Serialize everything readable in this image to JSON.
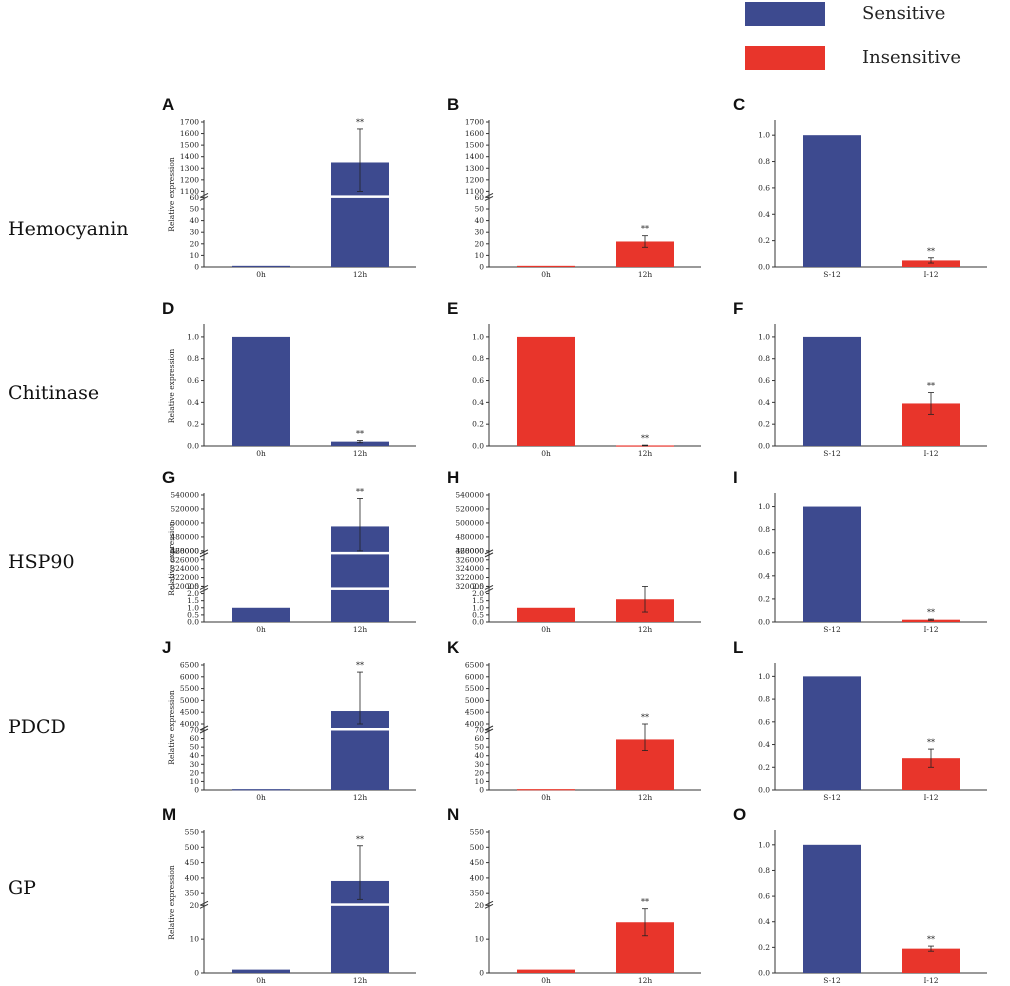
{
  "colors": {
    "sensitive": "#3d4a8f",
    "insensitive": "#e8352b",
    "axis": "#333333",
    "break": "#ffffff"
  },
  "legend": [
    {
      "label": "Sensitive",
      "color": "#3d4a8f"
    },
    {
      "label": "Insensitive",
      "color": "#e8352b"
    }
  ],
  "row_labels": [
    "Hemocyanin",
    "Chitinase",
    "HSP90",
    "PDCD",
    "GP"
  ],
  "ylabel": "Relative expression",
  "chart_data": [
    {
      "panel": "A",
      "type": "bar",
      "categories": [
        "0h",
        "12h"
      ],
      "values": [
        1,
        1350
      ],
      "errors": [
        0,
        290
      ],
      "stars": [
        "",
        "**"
      ],
      "colors": [
        "sensitive",
        "sensitive"
      ],
      "axis": {
        "low": {
          "max": 60,
          "ticks": [
            0,
            10,
            20,
            30,
            40,
            50,
            60
          ]
        },
        "high": {
          "min": 1100,
          "max": 1700,
          "ticks": [
            1100,
            1200,
            1300,
            1400,
            1500,
            1600,
            1700
          ]
        }
      },
      "ylabel": "Relative expression"
    },
    {
      "panel": "B",
      "type": "bar",
      "categories": [
        "0h",
        "12h"
      ],
      "values": [
        1,
        22
      ],
      "errors": [
        0,
        5
      ],
      "stars": [
        "",
        "**"
      ],
      "colors": [
        "insensitive",
        "insensitive"
      ],
      "axis": {
        "low": {
          "max": 60,
          "ticks": [
            0,
            10,
            20,
            30,
            40,
            50,
            60
          ]
        },
        "high": {
          "min": 1100,
          "max": 1700,
          "ticks": [
            1100,
            1200,
            1300,
            1400,
            1500,
            1600,
            1700
          ]
        }
      }
    },
    {
      "panel": "C",
      "type": "bar",
      "categories": [
        "S-12",
        "I-12"
      ],
      "values": [
        1.0,
        0.05
      ],
      "errors": [
        0,
        0.02
      ],
      "stars": [
        "",
        "**"
      ],
      "colors": [
        "sensitive",
        "insensitive"
      ],
      "axis": {
        "max": 1.1,
        "ticks": [
          0.0,
          0.2,
          0.4,
          0.6,
          0.8,
          1.0
        ],
        "labels": [
          "0.0",
          "0.2",
          "0.4",
          "0.6",
          "0.8",
          "1.0"
        ]
      }
    },
    {
      "panel": "D",
      "type": "bar",
      "categories": [
        "0h",
        "12h"
      ],
      "values": [
        1.0,
        0.04
      ],
      "errors": [
        0,
        0.01
      ],
      "stars": [
        "",
        "**"
      ],
      "colors": [
        "sensitive",
        "sensitive"
      ],
      "axis": {
        "max": 1.1,
        "ticks": [
          0.0,
          0.2,
          0.4,
          0.6,
          0.8,
          1.0
        ],
        "labels": [
          "0.0",
          "0.2",
          "0.4",
          "0.6",
          "0.8",
          "1.0"
        ]
      },
      "ylabel": "Relative expression"
    },
    {
      "panel": "E",
      "type": "bar",
      "categories": [
        "0h",
        "12h"
      ],
      "values": [
        1.0,
        0.005
      ],
      "errors": [
        0,
        0.003
      ],
      "stars": [
        "",
        "**"
      ],
      "colors": [
        "insensitive",
        "insensitive"
      ],
      "axis": {
        "max": 1.1,
        "ticks": [
          0.0,
          0.2,
          0.4,
          0.6,
          0.8,
          1.0
        ],
        "labels": [
          "0.0",
          "0.2",
          "0.4",
          "0.6",
          "0.8",
          "1.0"
        ]
      }
    },
    {
      "panel": "F",
      "type": "bar",
      "categories": [
        "S-12",
        "I-12"
      ],
      "values": [
        1.0,
        0.39
      ],
      "errors": [
        0,
        0.1
      ],
      "stars": [
        "",
        "**"
      ],
      "colors": [
        "sensitive",
        "insensitive"
      ],
      "axis": {
        "max": 1.1,
        "ticks": [
          0.0,
          0.2,
          0.4,
          0.6,
          0.8,
          1.0
        ],
        "labels": [
          "0.0",
          "0.2",
          "0.4",
          "0.6",
          "0.8",
          "1.0"
        ]
      }
    },
    {
      "panel": "G",
      "type": "bar",
      "categories": [
        "0h",
        "12h"
      ],
      "values": [
        1,
        495000
      ],
      "errors": [
        0,
        40000
      ],
      "stars": [
        "",
        "**"
      ],
      "colors": [
        "sensitive",
        "sensitive"
      ],
      "axis": {
        "segments": [
          {
            "min": 0,
            "max": 2.5,
            "ticks": [
              0,
              0.5,
              1,
              1.5,
              2,
              2.5
            ],
            "labels": [
              "0.0",
              "0.5",
              "1.0",
              "1.5",
              "2.0",
              "2.5"
            ]
          },
          {
            "min": 320000,
            "max": 328000,
            "ticks": [
              320000,
              322000,
              324000,
              326000,
              328000
            ]
          },
          {
            "min": 460000,
            "max": 540000,
            "ticks": [
              460000,
              480000,
              500000,
              520000,
              540000
            ]
          }
        ]
      },
      "ylabel": "Relative expression"
    },
    {
      "panel": "H",
      "type": "bar",
      "categories": [
        "0h",
        "12h"
      ],
      "values": [
        1,
        1.6
      ],
      "errors": [
        0,
        0.9
      ],
      "stars": [
        "",
        ""
      ],
      "colors": [
        "insensitive",
        "insensitive"
      ],
      "axis": {
        "segments": [
          {
            "min": 0,
            "max": 2.5,
            "ticks": [
              0,
              0.5,
              1,
              1.5,
              2,
              2.5
            ],
            "labels": [
              "0.0",
              "0.5",
              "1.0",
              "1.5",
              "2.0",
              "2.5"
            ]
          },
          {
            "min": 320000,
            "max": 328000,
            "ticks": [
              320000,
              322000,
              324000,
              326000,
              328000
            ]
          },
          {
            "min": 460000,
            "max": 540000,
            "ticks": [
              460000,
              480000,
              500000,
              520000,
              540000
            ]
          }
        ]
      }
    },
    {
      "panel": "I",
      "type": "bar",
      "categories": [
        "S-12",
        "I-12"
      ],
      "values": [
        1.0,
        0.02
      ],
      "errors": [
        0,
        0.005
      ],
      "stars": [
        "",
        "**"
      ],
      "colors": [
        "sensitive",
        "insensitive"
      ],
      "axis": {
        "max": 1.1,
        "ticks": [
          0.0,
          0.2,
          0.4,
          0.6,
          0.8,
          1.0
        ],
        "labels": [
          "0.0",
          "0.2",
          "0.4",
          "0.6",
          "0.8",
          "1.0"
        ]
      }
    },
    {
      "panel": "J",
      "type": "bar",
      "categories": [
        "0h",
        "12h"
      ],
      "values": [
        1,
        4550
      ],
      "errors": [
        0,
        1650
      ],
      "stars": [
        "",
        "**"
      ],
      "colors": [
        "sensitive",
        "sensitive"
      ],
      "axis": {
        "low": {
          "max": 70,
          "ticks": [
            0,
            10,
            20,
            30,
            40,
            50,
            60,
            70
          ]
        },
        "high": {
          "min": 4000,
          "max": 6500,
          "ticks": [
            4000,
            4500,
            5000,
            5500,
            6000,
            6500
          ]
        }
      },
      "ylabel": "Relative expression"
    },
    {
      "panel": "K",
      "type": "bar",
      "categories": [
        "0h",
        "12h"
      ],
      "values": [
        1,
        59
      ],
      "errors": [
        0,
        13
      ],
      "stars": [
        "",
        "**"
      ],
      "colors": [
        "insensitive",
        "insensitive"
      ],
      "axis": {
        "low": {
          "max": 70,
          "ticks": [
            0,
            10,
            20,
            30,
            40,
            50,
            60,
            70
          ]
        },
        "high": {
          "min": 4000,
          "max": 6500,
          "ticks": [
            4000,
            4500,
            5000,
            5500,
            6000,
            6500
          ]
        }
      }
    },
    {
      "panel": "L",
      "type": "bar",
      "categories": [
        "S-12",
        "I-12"
      ],
      "values": [
        1.0,
        0.28
      ],
      "errors": [
        0,
        0.08
      ],
      "stars": [
        "",
        "**"
      ],
      "colors": [
        "sensitive",
        "insensitive"
      ],
      "axis": {
        "max": 1.1,
        "ticks": [
          0.0,
          0.2,
          0.4,
          0.6,
          0.8,
          1.0
        ],
        "labels": [
          "0.0",
          "0.2",
          "0.4",
          "0.6",
          "0.8",
          "1.0"
        ]
      }
    },
    {
      "panel": "M",
      "type": "bar",
      "categories": [
        "0h",
        "12h"
      ],
      "values": [
        1,
        390
      ],
      "errors": [
        0,
        115
      ],
      "stars": [
        "",
        "**"
      ],
      "colors": [
        "sensitive",
        "sensitive"
      ],
      "axis": {
        "low": {
          "max": 20,
          "ticks": [
            0,
            10,
            20
          ]
        },
        "high": {
          "min": 330,
          "max": 550,
          "ticks": [
            350,
            400,
            450,
            500,
            550
          ]
        }
      },
      "ylabel": "Relative expression"
    },
    {
      "panel": "N",
      "type": "bar",
      "categories": [
        "0h",
        "12h"
      ],
      "values": [
        1,
        15
      ],
      "errors": [
        0,
        4
      ],
      "stars": [
        "",
        "**"
      ],
      "colors": [
        "insensitive",
        "insensitive"
      ],
      "axis": {
        "low": {
          "max": 20,
          "ticks": [
            0,
            10,
            20
          ]
        },
        "high": {
          "min": 330,
          "max": 550,
          "ticks": [
            350,
            400,
            450,
            500,
            550
          ]
        }
      }
    },
    {
      "panel": "O",
      "type": "bar",
      "categories": [
        "S-12",
        "I-12"
      ],
      "values": [
        1.0,
        0.19
      ],
      "errors": [
        0,
        0.02
      ],
      "stars": [
        "",
        "**"
      ],
      "colors": [
        "sensitive",
        "insensitive"
      ],
      "axis": {
        "max": 1.1,
        "ticks": [
          0.0,
          0.2,
          0.4,
          0.6,
          0.8,
          1.0
        ],
        "labels": [
          "0.0",
          "0.2",
          "0.4",
          "0.6",
          "0.8",
          "1.0"
        ]
      }
    }
  ]
}
